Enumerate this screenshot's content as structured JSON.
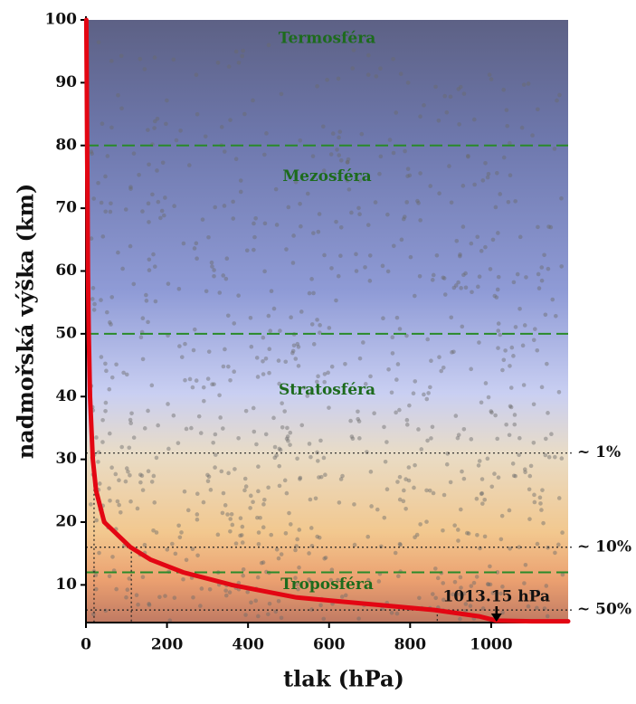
{
  "chart_data": {
    "type": "line",
    "xlabel": "tlak  (hPa)",
    "ylabel": "nadmořská výška (km)",
    "color": "#e30613",
    "x": [
      1,
      2,
      3,
      4,
      5,
      7,
      10,
      17,
      25,
      45,
      110,
      160,
      240,
      360,
      520,
      860,
      970,
      1013.15,
      1100,
      1190
    ],
    "values": [
      100,
      90,
      80,
      70,
      60,
      50,
      40,
      30,
      25,
      20,
      16,
      14,
      12,
      10,
      8,
      6,
      5,
      4.3,
      4.2,
      4.2
    ],
    "xlim": [
      0,
      1190
    ],
    "ylim": [
      4,
      100
    ],
    "xticks": [
      0,
      200,
      400,
      600,
      800,
      1000
    ],
    "yticks": [
      10,
      20,
      30,
      40,
      50,
      60,
      70,
      80,
      90,
      100
    ],
    "layers": [
      {
        "label": "Termosféra",
        "y": 97
      },
      {
        "label": "Mezosféra",
        "y": 75
      },
      {
        "label": "Stratosféra",
        "y": 41
      },
      {
        "label": "Troposféra",
        "y": 10
      }
    ],
    "boundaries": [
      80,
      50,
      12
    ],
    "levels": [
      {
        "value": 31,
        "x": 20,
        "label": "~ 1%"
      },
      {
        "value": 16,
        "x": 112,
        "label": "~ 10%"
      },
      {
        "value": 6,
        "x": 867,
        "label": "~ 50%"
      }
    ],
    "annotation": {
      "label": "1013.15 hPa",
      "x": 1013.15
    }
  }
}
